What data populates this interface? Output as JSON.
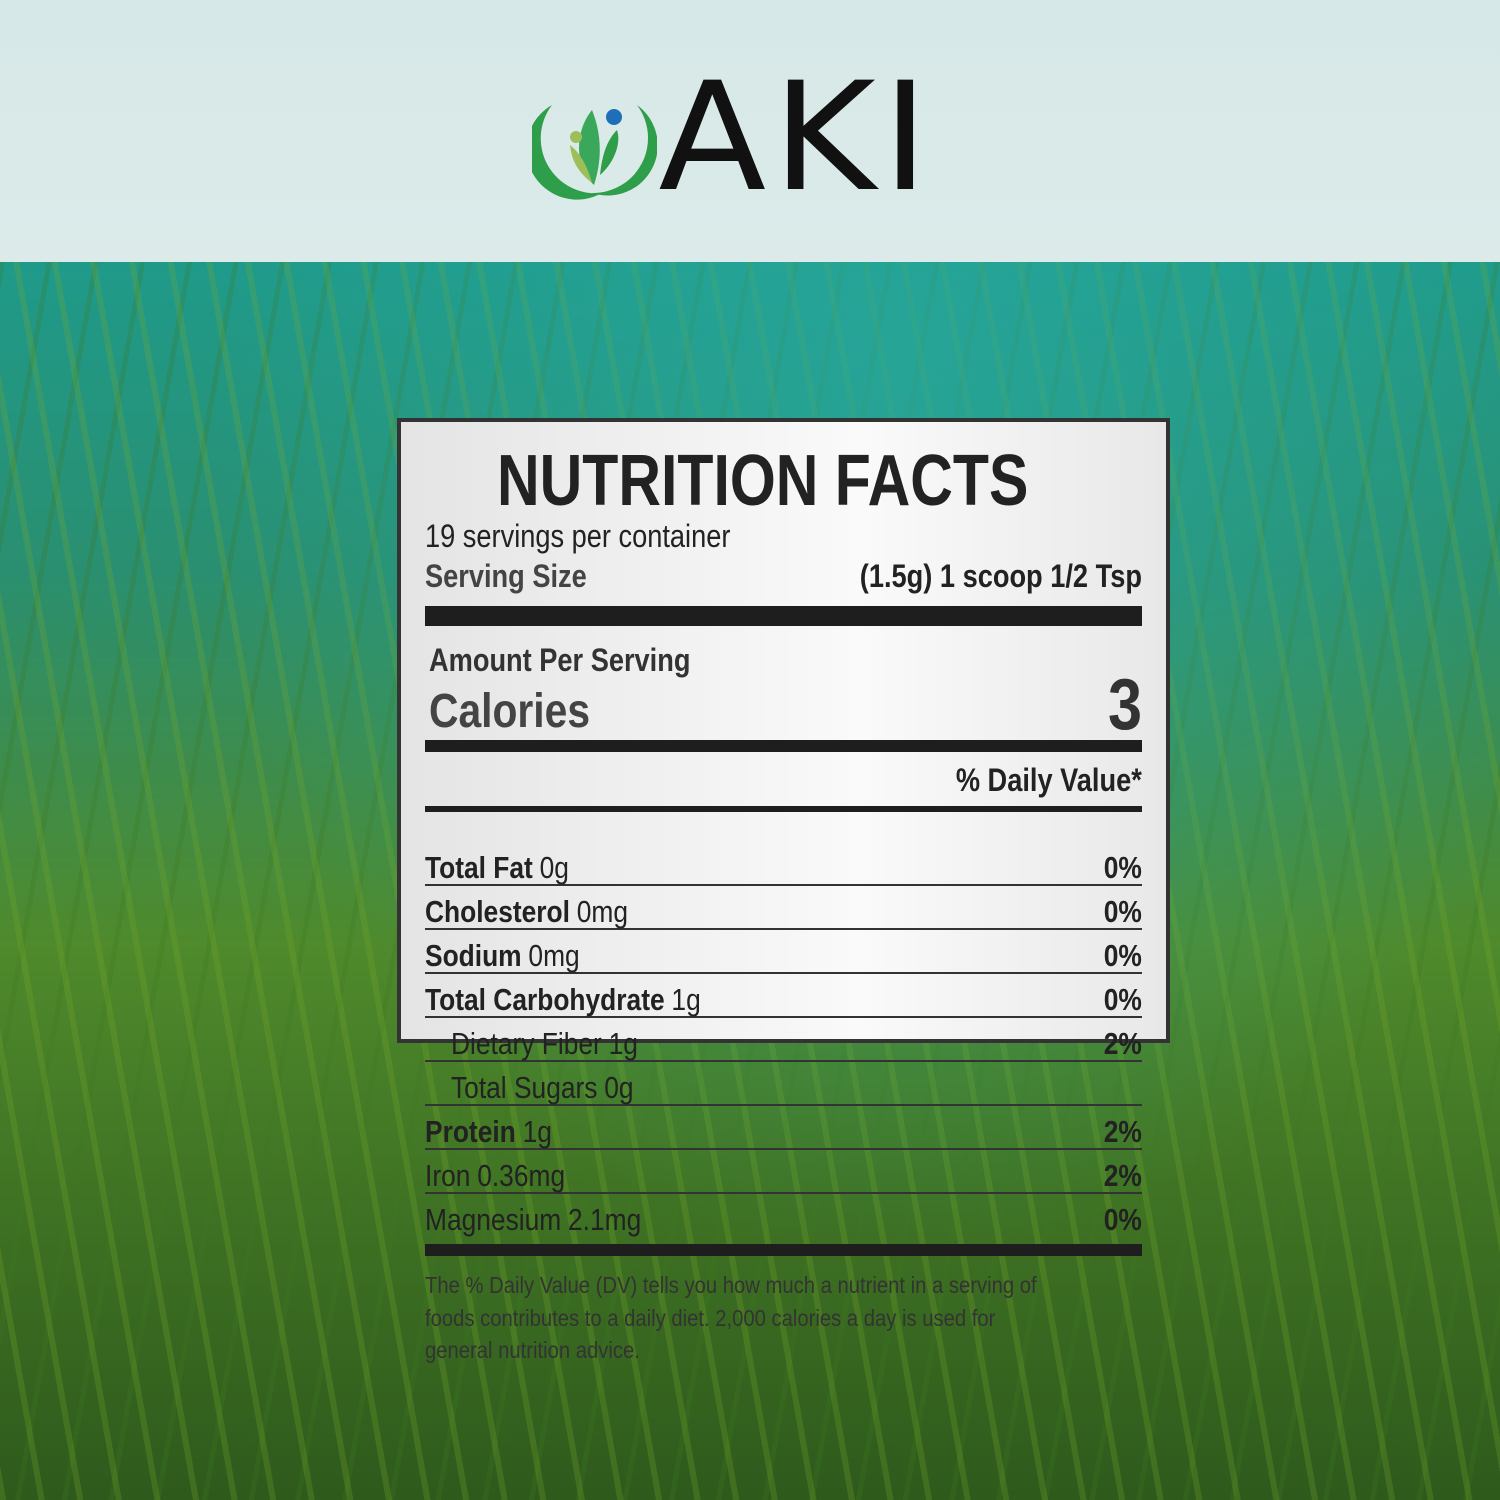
{
  "brand": {
    "name": "AKI",
    "colors": {
      "leaf_green": "#2f9e4a",
      "light_leaf": "#9cbf5a",
      "dot_blue": "#1f6fb8"
    }
  },
  "label": {
    "title": "NUTRITION FACTS",
    "servings": "19 servings per container",
    "serving_size_label": "Serving Size",
    "serving_size_value": "(1.5g) 1 scoop 1/2 Tsp",
    "amount_per_serving": "Amount Per Serving",
    "calories_label": "Calories",
    "calories_value": "3",
    "dv_header": "% Daily Value*",
    "nutrients": [
      {
        "name": "Total Fat",
        "amount": "0g",
        "dv": "0%",
        "bold": true,
        "indent": false
      },
      {
        "name": "Cholesterol",
        "amount": "0mg",
        "dv": "0%",
        "bold": true,
        "indent": false
      },
      {
        "name": "Sodium",
        "amount": "0mg",
        "dv": "0%",
        "bold": true,
        "indent": false
      },
      {
        "name": "Total Carbohydrate",
        "amount": "1g",
        "dv": "0%",
        "bold": true,
        "indent": false
      },
      {
        "name": "Dietary Fiber",
        "amount": "1g",
        "dv": "2%",
        "bold": false,
        "indent": true
      },
      {
        "name": "Total Sugars",
        "amount": "0g",
        "dv": "",
        "bold": false,
        "indent": true
      },
      {
        "name": "Protein",
        "amount": "1g",
        "dv": "2%",
        "bold": true,
        "indent": false
      },
      {
        "name": "Iron",
        "amount": "0.36mg",
        "dv": "2%",
        "bold": false,
        "indent": false
      },
      {
        "name": "Magnesium",
        "amount": "2.1mg",
        "dv": "0%",
        "bold": false,
        "indent": false
      }
    ],
    "footnote": [
      "The % Daily Value (DV) tells you how much a nutrient in a serving of",
      "foods contributes to a daily diet. 2,000 calories a day is used for",
      "general nutrition advice."
    ]
  }
}
